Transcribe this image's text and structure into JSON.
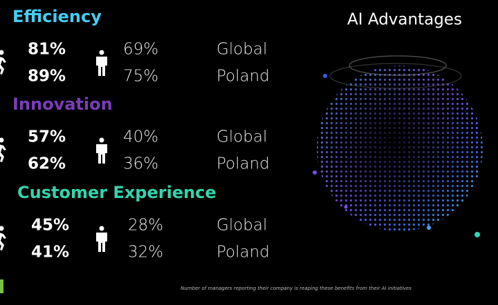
{
  "title": "AI Advantages",
  "sections": [
    {
      "heading": "Efficiency",
      "color": "#45cdf2",
      "rows": [
        {
          "leaders": "81%",
          "others": "69%",
          "region": "Global"
        },
        {
          "leaders": "89%",
          "others": "75%",
          "region": "Poland"
        }
      ]
    },
    {
      "heading": "Innovation",
      "color": "#7a3db8",
      "rows": [
        {
          "leaders": "57%",
          "others": "40%",
          "region": "Global"
        },
        {
          "leaders": "62%",
          "others": "36%",
          "region": "Poland"
        }
      ]
    },
    {
      "heading": "Customer Experience",
      "color": "#35d3ad",
      "rows": [
        {
          "leaders": "45%",
          "others": "28%",
          "region": "Global"
        },
        {
          "leaders": "41%",
          "others": "32%",
          "region": "Poland"
        }
      ]
    }
  ],
  "footnote": "Number of managers reporting their company is reaping these benefits from their AI initiatives"
}
